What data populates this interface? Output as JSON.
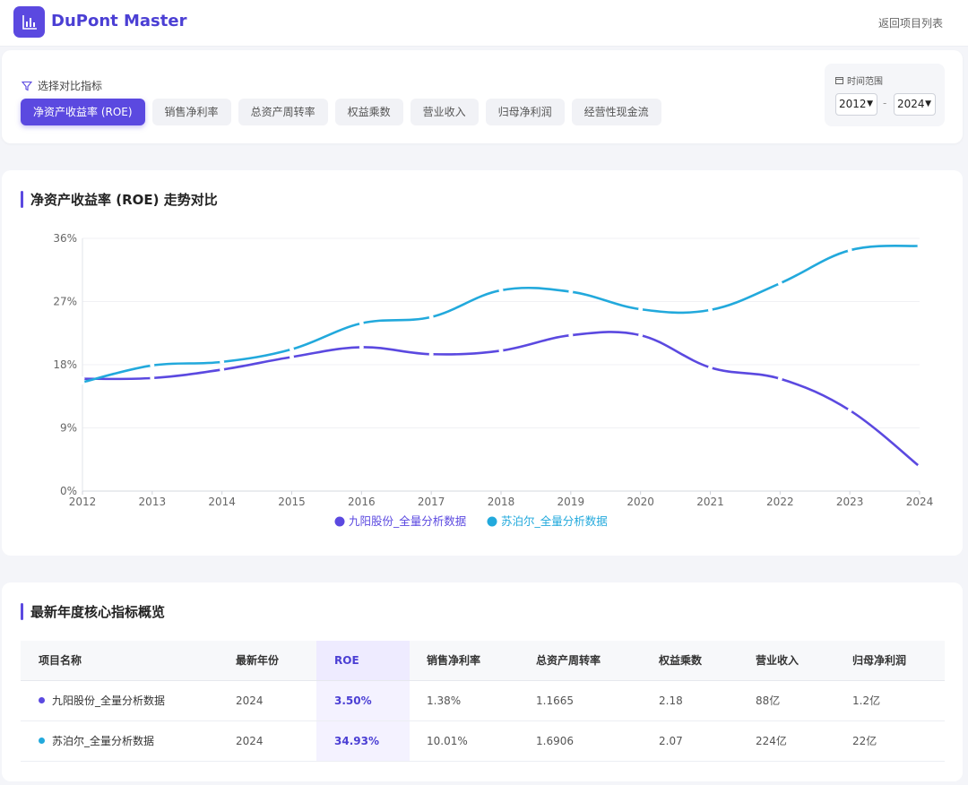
{
  "app": {
    "brand": "DuPont Master",
    "back_link": "返回项目列表"
  },
  "filter": {
    "label": "选择对比指标",
    "metrics": [
      {
        "label": "净资产收益率 (ROE)",
        "active": true
      },
      {
        "label": "销售净利率",
        "active": false
      },
      {
        "label": "总资产周转率",
        "active": false
      },
      {
        "label": "权益乘数",
        "active": false
      },
      {
        "label": "营业收入",
        "active": false
      },
      {
        "label": "归母净利润",
        "active": false
      },
      {
        "label": "经营性现金流",
        "active": false
      }
    ],
    "time_range_label": "时间范围",
    "start_year": "2012",
    "end_year": "2024",
    "separator": "-"
  },
  "chart_section": {
    "title": "净资产收益率 (ROE) 走势对比"
  },
  "chart_data": {
    "type": "line",
    "x": [
      "2012",
      "2013",
      "2014",
      "2015",
      "2016",
      "2017",
      "2018",
      "2019",
      "2020",
      "2021",
      "2022",
      "2023",
      "2024"
    ],
    "ylim": [
      0,
      36
    ],
    "yticks": [
      "0%",
      "9%",
      "18%",
      "27%",
      "36%"
    ],
    "series": [
      {
        "name": "九阳股份_全量分析数据",
        "color": "#5b49e0",
        "values": [
          16.0,
          16.1,
          17.3,
          19.1,
          20.5,
          19.5,
          20.0,
          22.2,
          22.2,
          17.6,
          16.0,
          11.5,
          3.5
        ]
      },
      {
        "name": "苏泊尔_全量分析数据",
        "color": "#22a9dc",
        "values": [
          15.5,
          17.9,
          18.4,
          20.2,
          23.9,
          24.8,
          28.6,
          28.4,
          25.9,
          25.8,
          29.6,
          34.3,
          34.93
        ]
      }
    ],
    "legend_position": "bottom-center",
    "grid": true
  },
  "overview": {
    "title": "最新年度核心指标概览",
    "columns": [
      "项目名称",
      "最新年份",
      "ROE",
      "销售净利率",
      "总资产周转率",
      "权益乘数",
      "营业收入",
      "归母净利润"
    ],
    "rows": [
      {
        "name": "九阳股份_全量分析数据",
        "color": "#5b49e0",
        "year": "2024",
        "roe": "3.50%",
        "net_margin": "1.38%",
        "asset_turnover": "1.1665",
        "equity_multiplier": "2.18",
        "revenue": "88亿",
        "net_profit": "1.2亿"
      },
      {
        "name": "苏泊尔_全量分析数据",
        "color": "#22a9dc",
        "year": "2024",
        "roe": "34.93%",
        "net_margin": "10.01%",
        "asset_turnover": "1.6906",
        "equity_multiplier": "2.07",
        "revenue": "224亿",
        "net_profit": "22亿"
      }
    ]
  }
}
